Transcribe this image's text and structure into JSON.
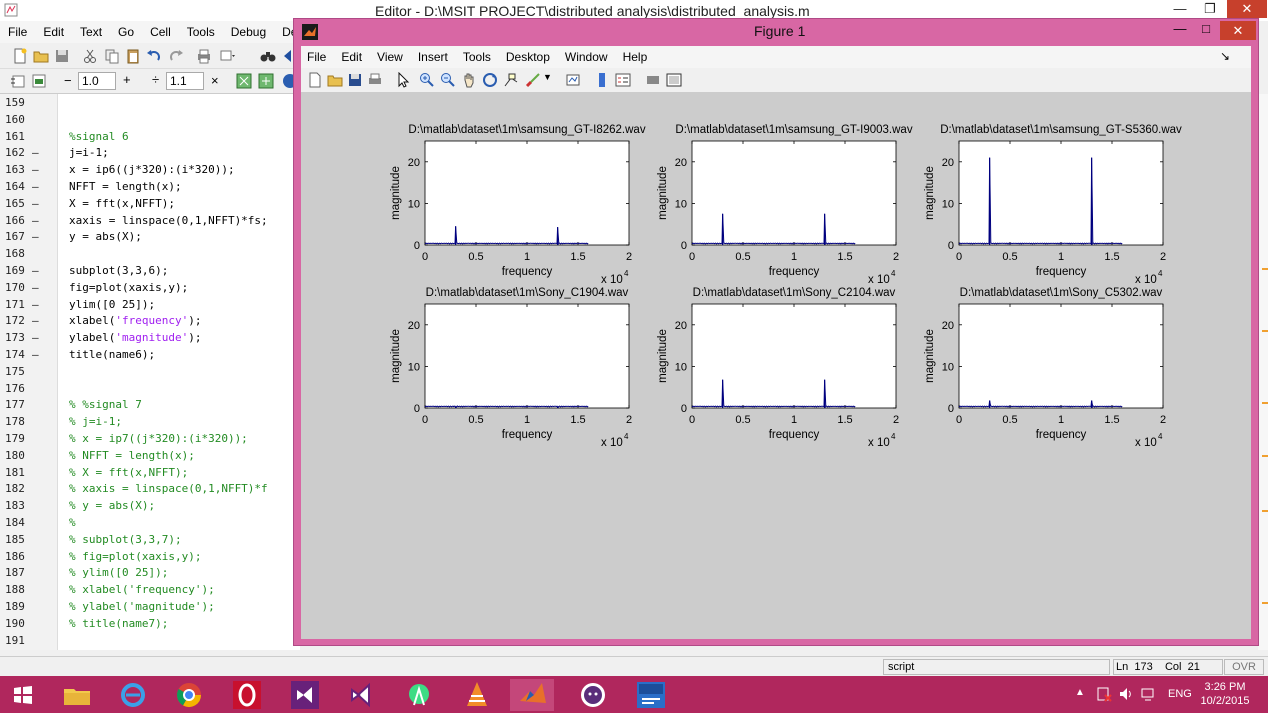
{
  "editor": {
    "title": "Editor - D:\\MSIT PROJECT\\distributed analysis\\distributed_analysis.m",
    "menu": [
      "File",
      "Edit",
      "Text",
      "Go",
      "Cell",
      "Tools",
      "Debug",
      "Deskto"
    ],
    "toolbar2": {
      "minus": "−",
      "value1": "1.0",
      "plus": "+",
      "divide": "÷",
      "value2": "1.1",
      "times": "×"
    },
    "code_lines": [
      {
        "num": "159",
        "dash": "",
        "text": "",
        "type": "code"
      },
      {
        "num": "160",
        "dash": "",
        "text": "",
        "type": "code"
      },
      {
        "num": "161",
        "dash": "",
        "text": "%signal 6",
        "type": "comment"
      },
      {
        "num": "162",
        "dash": "—",
        "text": "j=i-1;",
        "type": "code"
      },
      {
        "num": "163",
        "dash": "—",
        "text": "x = ip6((j*320):(i*320));",
        "type": "code"
      },
      {
        "num": "164",
        "dash": "—",
        "text": "NFFT = length(x);",
        "type": "code"
      },
      {
        "num": "165",
        "dash": "—",
        "text": "X = fft(x,NFFT);",
        "type": "code"
      },
      {
        "num": "166",
        "dash": "—",
        "text": "xaxis = linspace(0,1,NFFT)*fs;",
        "type": "code"
      },
      {
        "num": "167",
        "dash": "—",
        "text": "y = abs(X);",
        "type": "code"
      },
      {
        "num": "168",
        "dash": "",
        "text": "",
        "type": "code"
      },
      {
        "num": "169",
        "dash": "—",
        "text": "subplot(3,3,6);",
        "type": "code"
      },
      {
        "num": "170",
        "dash": "—",
        "text": "fig=plot(xaxis,y);",
        "type": "code"
      },
      {
        "num": "171",
        "dash": "—",
        "text": "ylim([0 25]);",
        "type": "code"
      },
      {
        "num": "172",
        "dash": "—",
        "text": "xlabel('frequency');",
        "type": "str",
        "pre": "xlabel(",
        "str": "'frequency'",
        "post": ");"
      },
      {
        "num": "173",
        "dash": "—",
        "text": "ylabel('magnitude');",
        "type": "str",
        "pre": "ylabel(",
        "str": "'magnitude'",
        "post": ");"
      },
      {
        "num": "174",
        "dash": "—",
        "text": "title(name6);",
        "type": "code"
      },
      {
        "num": "175",
        "dash": "",
        "text": "",
        "type": "code"
      },
      {
        "num": "176",
        "dash": "",
        "text": "",
        "type": "code"
      },
      {
        "num": "177",
        "dash": "",
        "text": "% %signal 7",
        "type": "comment"
      },
      {
        "num": "178",
        "dash": "",
        "text": "% j=i-1;",
        "type": "comment"
      },
      {
        "num": "179",
        "dash": "",
        "text": "% x = ip7((j*320):(i*320));",
        "type": "comment"
      },
      {
        "num": "180",
        "dash": "",
        "text": "% NFFT = length(x);",
        "type": "comment"
      },
      {
        "num": "181",
        "dash": "",
        "text": "% X = fft(x,NFFT);",
        "type": "comment"
      },
      {
        "num": "182",
        "dash": "",
        "text": "% xaxis = linspace(0,1,NFFT)*f",
        "type": "comment"
      },
      {
        "num": "183",
        "dash": "",
        "text": "% y = abs(X);",
        "type": "comment"
      },
      {
        "num": "184",
        "dash": "",
        "text": "%",
        "type": "comment"
      },
      {
        "num": "185",
        "dash": "",
        "text": "% subplot(3,3,7);",
        "type": "comment"
      },
      {
        "num": "186",
        "dash": "",
        "text": "% fig=plot(xaxis,y);",
        "type": "comment"
      },
      {
        "num": "187",
        "dash": "",
        "text": "% ylim([0 25]);",
        "type": "comment"
      },
      {
        "num": "188",
        "dash": "",
        "text": "% xlabel('frequency');",
        "type": "comment"
      },
      {
        "num": "189",
        "dash": "",
        "text": "% ylabel('magnitude');",
        "type": "comment"
      },
      {
        "num": "190",
        "dash": "",
        "text": "% title(name7);",
        "type": "comment"
      },
      {
        "num": "191",
        "dash": "",
        "text": "",
        "type": "code"
      }
    ],
    "status": {
      "mode": "script",
      "ln_label": "Ln",
      "ln": "173",
      "col_label": "Col",
      "col": "21",
      "ovr": "OVR"
    }
  },
  "figure": {
    "title": "Figure 1",
    "menu": [
      "File",
      "Edit",
      "View",
      "Insert",
      "Tools",
      "Desktop",
      "Window",
      "Help"
    ],
    "menu_arrow": "↘"
  },
  "chart_data": [
    {
      "type": "line",
      "title": "D:\\matlab\\dataset\\1m\\samsung_GT-I8262.wav",
      "xlabel": "frequency",
      "ylabel": "magnitude",
      "xlim": [
        0,
        2
      ],
      "ylim": [
        0,
        25
      ],
      "x_multiplier": "x 10",
      "x_exponent": "4",
      "xticks": [
        "0",
        "0.5",
        "1",
        "1.5",
        "2"
      ],
      "yticks": [
        "0",
        "10",
        "20"
      ],
      "peaks": [
        {
          "x": 0.3,
          "y": 4.5
        },
        {
          "x": 1.3,
          "y": 4.3
        }
      ],
      "noise_end": 1.6
    },
    {
      "type": "line",
      "title": "D:\\matlab\\dataset\\1m\\samsung_GT-I9003.wav",
      "xlabel": "frequency",
      "ylabel": "magnitude",
      "xlim": [
        0,
        2
      ],
      "ylim": [
        0,
        25
      ],
      "x_multiplier": "x 10",
      "x_exponent": "4",
      "xticks": [
        "0",
        "0.5",
        "1",
        "1.5",
        "2"
      ],
      "yticks": [
        "0",
        "10",
        "20"
      ],
      "peaks": [
        {
          "x": 0.3,
          "y": 7.5
        },
        {
          "x": 1.3,
          "y": 7.5
        }
      ],
      "noise_end": 1.6
    },
    {
      "type": "line",
      "title": "D:\\matlab\\dataset\\1m\\samsung_GT-S5360.wav",
      "xlabel": "frequency",
      "ylabel": "magnitude",
      "xlim": [
        0,
        2
      ],
      "ylim": [
        0,
        25
      ],
      "x_multiplier": "x 10",
      "x_exponent": "4",
      "xticks": [
        "0",
        "0.5",
        "1",
        "1.5",
        "2"
      ],
      "yticks": [
        "0",
        "10",
        "20"
      ],
      "peaks": [
        {
          "x": 0.3,
          "y": 21
        },
        {
          "x": 1.3,
          "y": 21
        }
      ],
      "noise_end": 1.6
    },
    {
      "type": "line",
      "title": "D:\\matlab\\dataset\\1m\\Sony_C1904.wav",
      "xlabel": "frequency",
      "ylabel": "magnitude",
      "xlim": [
        0,
        2
      ],
      "ylim": [
        0,
        25
      ],
      "x_multiplier": "x 10",
      "x_exponent": "4",
      "xticks": [
        "0",
        "0.5",
        "1",
        "1.5",
        "2"
      ],
      "yticks": [
        "0",
        "10",
        "20"
      ],
      "peaks": [
        {
          "x": 0.3,
          "y": 0.3
        },
        {
          "x": 1.3,
          "y": 0.3
        }
      ],
      "noise_end": 1.6
    },
    {
      "type": "line",
      "title": "D:\\matlab\\dataset\\1m\\Sony_C2104.wav",
      "xlabel": "frequency",
      "ylabel": "magnitude",
      "xlim": [
        0,
        2
      ],
      "ylim": [
        0,
        25
      ],
      "x_multiplier": "x 10",
      "x_exponent": "4",
      "xticks": [
        "0",
        "0.5",
        "1",
        "1.5",
        "2"
      ],
      "yticks": [
        "0",
        "10",
        "20"
      ],
      "peaks": [
        {
          "x": 0.3,
          "y": 6.8
        },
        {
          "x": 1.3,
          "y": 6.8
        }
      ],
      "noise_end": 1.6
    },
    {
      "type": "line",
      "title": "D:\\matlab\\dataset\\1m\\Sony_C5302.wav",
      "xlabel": "frequency",
      "ylabel": "magnitude",
      "xlim": [
        0,
        2
      ],
      "ylim": [
        0,
        25
      ],
      "x_multiplier": "x 10",
      "x_exponent": "4",
      "xticks": [
        "0",
        "0.5",
        "1",
        "1.5",
        "2"
      ],
      "yticks": [
        "0",
        "10",
        "20"
      ],
      "peaks": [
        {
          "x": 0.3,
          "y": 1.8
        },
        {
          "x": 1.3,
          "y": 1.8
        }
      ],
      "noise_end": 1.6
    }
  ],
  "taskbar": {
    "apps": [
      "windows-start-icon",
      "file-explorer-icon",
      "internet-explorer-icon",
      "chrome-icon",
      "opera-icon",
      "visual-studio-icon",
      "visual-studio-alt-icon",
      "android-studio-icon",
      "vlc-icon",
      "matlab-icon",
      "github-icon",
      "devcpp-icon"
    ],
    "lang": "ENG",
    "time": "3:26 PM",
    "date": "10/2/2015"
  },
  "colors": {
    "accent": "#b0275d",
    "figure_border": "#d867a4",
    "plot_line": "#00007f",
    "canvas": "#cccccc",
    "comment": "#228b22",
    "string": "#a020f0"
  }
}
